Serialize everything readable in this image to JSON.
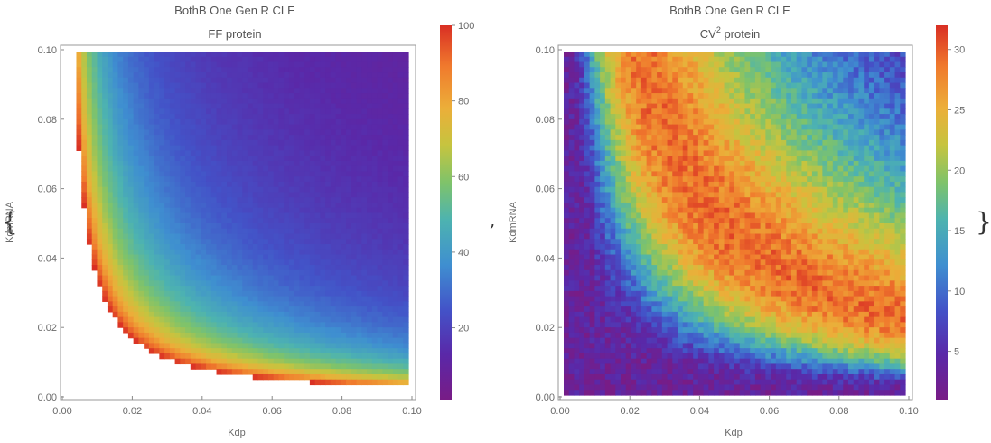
{
  "wrapper": {
    "open_brace": "{",
    "separator": ",",
    "close_brace": "}"
  },
  "colormap": [
    "#781c86",
    "#5a28a8",
    "#4353c8",
    "#3f8fd0",
    "#4db3b0",
    "#7fc36a",
    "#c6c43f",
    "#ecae39",
    "#f07a2d",
    "#d92f24"
  ],
  "chart_data": [
    {
      "type": "heatmap",
      "title": "BothB One Gen R CLE",
      "subtitle": "FF protein",
      "xlabel": "Kdp",
      "ylabel": "KdmRNA",
      "xlim": [
        0.0,
        0.1
      ],
      "ylim": [
        0.0,
        0.1
      ],
      "x_ticks": [
        "0.00",
        "0.02",
        "0.04",
        "0.06",
        "0.08",
        "0.10"
      ],
      "y_ticks": [
        "0.00",
        "0.02",
        "0.04",
        "0.06",
        "0.08",
        "0.10"
      ],
      "colorbar": {
        "min": 1,
        "max": 100,
        "ticks": [
          "20",
          "40",
          "60",
          "80",
          "100"
        ]
      },
      "description_values": {
        "white_region": "undefined for low Kdp*KdmRNA",
        "peak_near_boundary": 100,
        "far_corner": 3
      }
    },
    {
      "type": "heatmap",
      "title": "BothB One Gen R CLE",
      "subtitle_base": "CV",
      "subtitle_sup": "2",
      "subtitle_rest": " protein",
      "xlabel": "Kdp",
      "ylabel": "KdmRNA",
      "xlim": [
        0.0,
        0.1
      ],
      "ylim": [
        0.0,
        0.1
      ],
      "x_ticks": [
        "0.00",
        "0.02",
        "0.04",
        "0.06",
        "0.08",
        "0.10"
      ],
      "y_ticks": [
        "0.00",
        "0.02",
        "0.04",
        "0.06",
        "0.08",
        "0.10"
      ],
      "colorbar": {
        "min": 1,
        "max": 32,
        "ticks": [
          "5",
          "10",
          "15",
          "20",
          "25",
          "30"
        ]
      },
      "description_values": {
        "ridge_peak": 30,
        "low_corner": 3
      }
    }
  ]
}
